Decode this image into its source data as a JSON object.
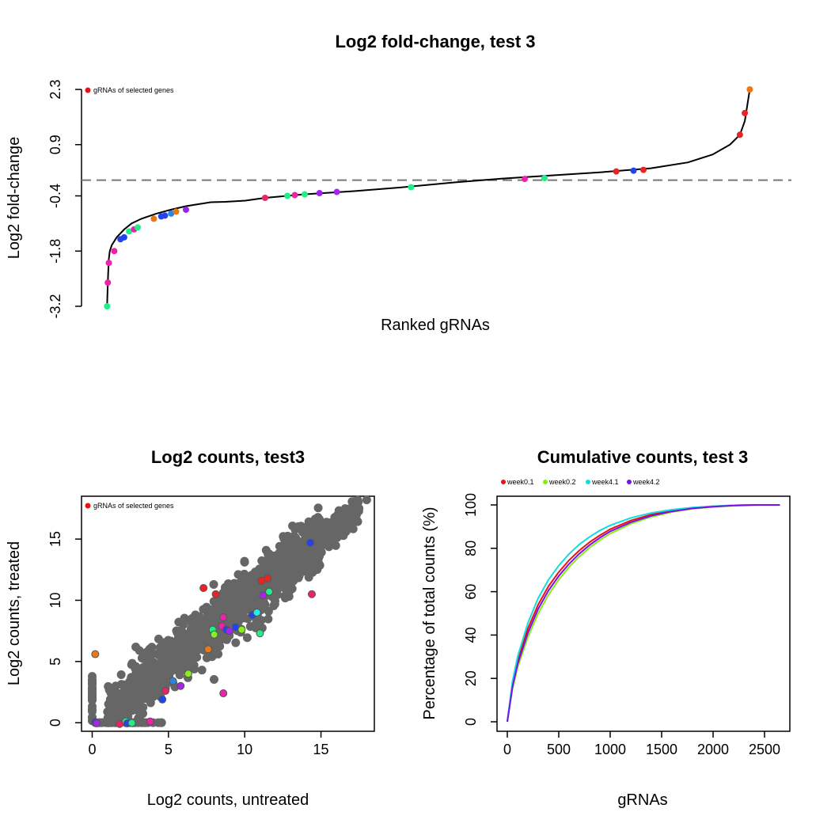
{
  "chart_data": [
    {
      "type": "line",
      "title": "Log2 fold-change, test 3",
      "xlabel": "Ranked gRNAs",
      "ylabel": "Log2 fold-change",
      "xlim": [
        0,
        2650
      ],
      "ylim": [
        -3.2,
        2.3
      ],
      "yticks": [
        -3.2,
        -1.8,
        -0.4,
        0.9,
        2.3
      ],
      "ytick_labels": [
        "-3.2",
        "-1.8",
        "-0.4",
        "0.9",
        "2.3"
      ],
      "reference_line": 0,
      "legend": {
        "position": "top-left",
        "entries": [
          {
            "label": "gRNAs of selected genes",
            "color": "#ee1111"
          }
        ]
      },
      "curve": [
        [
          1,
          -3.2
        ],
        [
          3,
          -2.8
        ],
        [
          5,
          -2.4
        ],
        [
          8,
          -2.0
        ],
        [
          12,
          -1.8
        ],
        [
          20,
          -1.65
        ],
        [
          40,
          -1.45
        ],
        [
          70,
          -1.25
        ],
        [
          100,
          -1.1
        ],
        [
          140,
          -0.98
        ],
        [
          200,
          -0.85
        ],
        [
          260,
          -0.75
        ],
        [
          320,
          -0.66
        ],
        [
          380,
          -0.6
        ],
        [
          420,
          -0.56
        ],
        [
          480,
          -0.55
        ],
        [
          560,
          -0.52
        ],
        [
          640,
          -0.45
        ],
        [
          800,
          -0.36
        ],
        [
          1000,
          -0.28
        ],
        [
          1200,
          -0.18
        ],
        [
          1400,
          -0.06
        ],
        [
          1600,
          0.04
        ],
        [
          1800,
          0.12
        ],
        [
          2000,
          0.2
        ],
        [
          2200,
          0.3
        ],
        [
          2350,
          0.45
        ],
        [
          2450,
          0.65
        ],
        [
          2520,
          0.9
        ],
        [
          2560,
          1.15
        ],
        [
          2580,
          1.5
        ],
        [
          2600,
          2.3
        ]
      ],
      "points": [
        {
          "x": 1,
          "y": -3.2,
          "color": "#22ee88"
        },
        {
          "x": 4,
          "y": -2.6,
          "color": "#ee22aa"
        },
        {
          "x": 8,
          "y": -2.1,
          "color": "#ee22aa"
        },
        {
          "x": 30,
          "y": -1.8,
          "color": "#ee22aa"
        },
        {
          "x": 55,
          "y": -1.5,
          "color": "#2244ee"
        },
        {
          "x": 70,
          "y": -1.45,
          "color": "#2244ee"
        },
        {
          "x": 90,
          "y": -1.3,
          "color": "#22ee88"
        },
        {
          "x": 110,
          "y": -1.25,
          "color": "#ee22aa"
        },
        {
          "x": 125,
          "y": -1.2,
          "color": "#22ee88"
        },
        {
          "x": 190,
          "y": -0.98,
          "color": "#ee7711"
        },
        {
          "x": 220,
          "y": -0.92,
          "color": "#2244ee"
        },
        {
          "x": 235,
          "y": -0.9,
          "color": "#2244ee"
        },
        {
          "x": 260,
          "y": -0.85,
          "color": "#2288ee"
        },
        {
          "x": 280,
          "y": -0.8,
          "color": "#ee7711"
        },
        {
          "x": 320,
          "y": -0.75,
          "color": "#9922ee"
        },
        {
          "x": 640,
          "y": -0.45,
          "color": "#ee2266"
        },
        {
          "x": 730,
          "y": -0.4,
          "color": "#22ee88"
        },
        {
          "x": 760,
          "y": -0.38,
          "color": "#ee22aa"
        },
        {
          "x": 800,
          "y": -0.36,
          "color": "#22ee88"
        },
        {
          "x": 860,
          "y": -0.33,
          "color": "#9922ee"
        },
        {
          "x": 930,
          "y": -0.3,
          "color": "#aa22ee"
        },
        {
          "x": 1230,
          "y": -0.18,
          "color": "#22ee88"
        },
        {
          "x": 1690,
          "y": 0.03,
          "color": "#ee22aa"
        },
        {
          "x": 1770,
          "y": 0.05,
          "color": "#22ee88"
        },
        {
          "x": 2060,
          "y": 0.22,
          "color": "#ee2222"
        },
        {
          "x": 2130,
          "y": 0.24,
          "color": "#2244ee"
        },
        {
          "x": 2170,
          "y": 0.26,
          "color": "#ee2222"
        },
        {
          "x": 2560,
          "y": 1.15,
          "color": "#ee2222"
        },
        {
          "x": 2580,
          "y": 1.7,
          "color": "#ee2222"
        },
        {
          "x": 2600,
          "y": 2.3,
          "color": "#ee7711"
        }
      ]
    },
    {
      "type": "scatter",
      "title": "Log2 counts, test3",
      "xlabel": "Log2 counts, untreated",
      "ylabel": "Log2 counts, treated",
      "xlim": [
        -0.7,
        18.5
      ],
      "ylim": [
        -0.7,
        18.5
      ],
      "xticks": [
        0,
        5,
        10,
        15
      ],
      "yticks": [
        0,
        5,
        10,
        15
      ],
      "legend": {
        "position": "top-left",
        "entries": [
          {
            "label": "gRNAs of selected genes",
            "color": "#ee1111"
          }
        ]
      },
      "background_color": "#666666",
      "background_count": 1400,
      "highlighted": [
        {
          "x": 0.2,
          "y": 5.6,
          "color": "#ee7711"
        },
        {
          "x": 0.2,
          "y": 0.05,
          "color": "#2244ee"
        },
        {
          "x": 0.3,
          "y": -0.05,
          "color": "#aa22ee"
        },
        {
          "x": 1.8,
          "y": -0.1,
          "color": "#ee2266"
        },
        {
          "x": 2.2,
          "y": 0.1,
          "color": "#22ee88"
        },
        {
          "x": 2.3,
          "y": -0.05,
          "color": "#2244ee"
        },
        {
          "x": 2.6,
          "y": -0.02,
          "color": "#22ee88"
        },
        {
          "x": 3.8,
          "y": 0.1,
          "color": "#ee22aa"
        },
        {
          "x": 4.6,
          "y": 1.9,
          "color": "#2244ee"
        },
        {
          "x": 4.8,
          "y": 2.6,
          "color": "#ee2266"
        },
        {
          "x": 5.3,
          "y": 3.4,
          "color": "#2288ee"
        },
        {
          "x": 5.8,
          "y": 3.0,
          "color": "#aa22ee"
        },
        {
          "x": 6.3,
          "y": 4.0,
          "color": "#88ee22"
        },
        {
          "x": 7.3,
          "y": 11.0,
          "color": "#ee2222"
        },
        {
          "x": 7.6,
          "y": 6.0,
          "color": "#ee7711"
        },
        {
          "x": 7.9,
          "y": 7.6,
          "color": "#22ee88"
        },
        {
          "x": 8.0,
          "y": 7.2,
          "color": "#88ee22"
        },
        {
          "x": 8.1,
          "y": 10.5,
          "color": "#ee2222"
        },
        {
          "x": 8.5,
          "y": 7.9,
          "color": "#ee22aa"
        },
        {
          "x": 8.6,
          "y": 8.6,
          "color": "#ee22aa"
        },
        {
          "x": 8.6,
          "y": 2.4,
          "color": "#ee22aa"
        },
        {
          "x": 8.8,
          "y": 7.6,
          "color": "#2244ee"
        },
        {
          "x": 9.0,
          "y": 7.5,
          "color": "#aa22ee"
        },
        {
          "x": 9.4,
          "y": 7.8,
          "color": "#2244ee"
        },
        {
          "x": 9.8,
          "y": 7.6,
          "color": "#88ee22"
        },
        {
          "x": 10.5,
          "y": 8.8,
          "color": "#2244ee"
        },
        {
          "x": 10.8,
          "y": 9.0,
          "color": "#22eeee"
        },
        {
          "x": 11.0,
          "y": 7.3,
          "color": "#22ee88"
        },
        {
          "x": 11.1,
          "y": 11.6,
          "color": "#ee2222"
        },
        {
          "x": 11.2,
          "y": 10.4,
          "color": "#aa22ee"
        },
        {
          "x": 11.5,
          "y": 11.8,
          "color": "#ee2222"
        },
        {
          "x": 11.6,
          "y": 10.7,
          "color": "#22ee88"
        },
        {
          "x": 14.3,
          "y": 14.7,
          "color": "#2244ee"
        },
        {
          "x": 14.4,
          "y": 10.5,
          "color": "#ee2266"
        }
      ]
    },
    {
      "type": "line",
      "title": "Cumulative counts, test 3",
      "xlabel": "gRNAs",
      "ylabel": "Percentage of total counts (%)",
      "xlim": [
        0,
        2650
      ],
      "ylim": [
        0,
        100
      ],
      "xticks": [
        0,
        500,
        1000,
        1500,
        2000,
        2500
      ],
      "yticks": [
        0,
        20,
        40,
        60,
        80,
        100
      ],
      "legend": {
        "position": "top"
      },
      "x": [
        0,
        50,
        100,
        200,
        300,
        400,
        500,
        600,
        700,
        800,
        900,
        1000,
        1200,
        1400,
        1600,
        1800,
        2000,
        2200,
        2400,
        2500,
        2650
      ],
      "series": [
        {
          "name": "week0.1",
          "color": "#ee1111",
          "values": [
            0,
            17,
            28,
            43,
            54,
            62.5,
            69,
            74.5,
            79,
            82.8,
            86,
            88.8,
            92.8,
            95.6,
            97.5,
            98.7,
            99.4,
            99.8,
            100,
            100,
            100
          ]
        },
        {
          "name": "week0.2",
          "color": "#88ee11",
          "values": [
            0,
            15,
            25,
            39,
            50,
            58.5,
            65.5,
            71.3,
            76.2,
            80.3,
            83.8,
            86.8,
            91.3,
            94.5,
            96.7,
            98.2,
            99.1,
            99.6,
            99.9,
            100,
            100
          ]
        },
        {
          "name": "week4.1",
          "color": "#11dddd",
          "values": [
            0,
            18.5,
            30,
            45.5,
            57,
            65.5,
            72,
            77.4,
            81.8,
            85.3,
            88.2,
            90.6,
            94,
            96.3,
            97.8,
            98.8,
            99.4,
            99.8,
            100,
            100,
            100
          ]
        },
        {
          "name": "week4.2",
          "color": "#7711ee",
          "values": [
            0,
            16,
            26.5,
            41,
            52,
            60.5,
            67.2,
            72.8,
            77.5,
            81.5,
            84.9,
            87.8,
            92,
            95,
            97,
            98.4,
            99.2,
            99.7,
            100,
            100,
            100
          ]
        }
      ]
    }
  ]
}
